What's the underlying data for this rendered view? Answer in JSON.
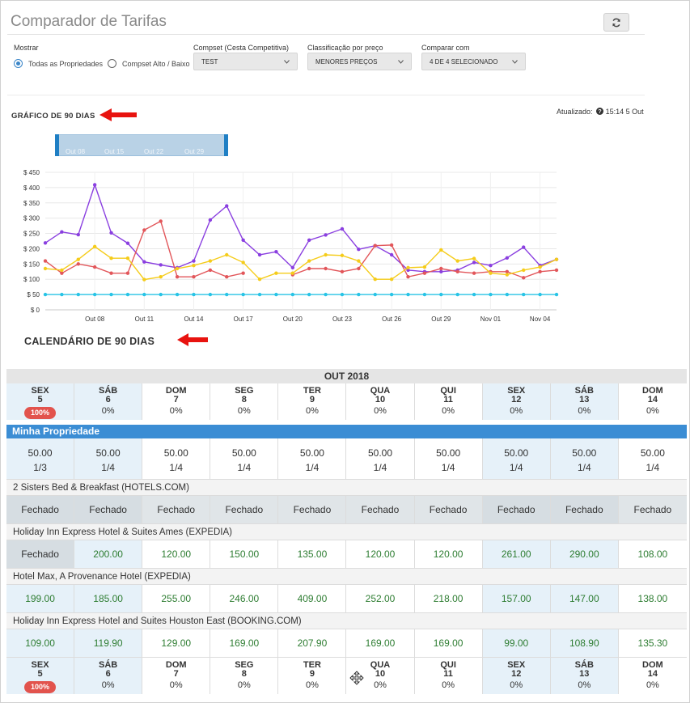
{
  "title": "Comparador de Tarifas",
  "filters": {
    "mostrar_label": "Mostrar",
    "radio_all": "Todas as Propriedades",
    "radio_compset": "Compset Alto / Baixo",
    "compset_label": "Compset (Cesta Competitiva)",
    "compset_value": "TEST",
    "class_label": "Classificação por preço",
    "class_value": "MENORES PREÇOS",
    "compare_label": "Comparar com",
    "compare_value": "4 DE 4 SELECIONADO"
  },
  "graph": {
    "title": "GRÁFICO DE 90 DIAS",
    "updated_label": "Atualizado:",
    "updated_value": "15:14 5 Out",
    "range_labels": [
      "Out 08",
      "Out 15",
      "Out 22",
      "Out 29"
    ]
  },
  "chart_data": {
    "type": "line",
    "y_ticks": [
      "$ 0",
      "$ 50",
      "$ 100",
      "$ 150",
      "$ 200",
      "$ 250",
      "$ 300",
      "$ 350",
      "$ 400",
      "$ 450"
    ],
    "ylim": [
      0,
      450
    ],
    "x_tick_labels": [
      "Out 08",
      "Out 11",
      "Out 14",
      "Out 17",
      "Out 20",
      "Out 23",
      "Out 26",
      "Out 29",
      "Nov 01",
      "Nov 04"
    ],
    "x_tick_days": [
      3,
      6,
      9,
      12,
      15,
      18,
      21,
      24,
      27,
      30
    ],
    "x_range": [
      0,
      31
    ],
    "grid": true,
    "series": [
      {
        "color": "#8a3fe0",
        "values": [
          219,
          255,
          246,
          409,
          252,
          218,
          157,
          147,
          138,
          160,
          294,
          340,
          228,
          180,
          190,
          138,
          228,
          245,
          265,
          198,
          210,
          180,
          130,
          125,
          125,
          130,
          155,
          145,
          170,
          205,
          145,
          165
        ]
      },
      {
        "color": "#e2565a",
        "values": [
          160,
          120,
          150,
          140,
          120,
          120,
          261,
          290,
          108,
          108,
          130,
          108,
          120,
          null,
          null,
          115,
          135,
          135,
          125,
          135,
          210,
          212,
          108,
          120,
          135,
          125,
          120,
          125,
          125,
          105,
          125,
          130
        ]
      },
      {
        "color": "#f5cc1a",
        "values": [
          135,
          130,
          165,
          207,
          169,
          169,
          99,
          108,
          135,
          145,
          160,
          180,
          155,
          100,
          120,
          120,
          160,
          180,
          178,
          160,
          100,
          100,
          138,
          140,
          196,
          160,
          168,
          120,
          115,
          130,
          140,
          165
        ]
      },
      {
        "color": "#28c4e6",
        "values": [
          50,
          50,
          50,
          50,
          50,
          50,
          50,
          50,
          50,
          50,
          50,
          50,
          50,
          50,
          50,
          50,
          50,
          50,
          50,
          50,
          50,
          50,
          50,
          50,
          50,
          50,
          50,
          50,
          50,
          50,
          50,
          50
        ]
      }
    ]
  },
  "calendar": {
    "title": "CALENDÁRIO DE 90 DIAS",
    "month": "OUT 2018",
    "days": [
      {
        "dow": "SEX",
        "day": "5",
        "pct": "100%",
        "badge": true,
        "hl": true
      },
      {
        "dow": "SÁB",
        "day": "6",
        "pct": "0%",
        "badge": false,
        "hl": true
      },
      {
        "dow": "DOM",
        "day": "7",
        "pct": "0%",
        "badge": false,
        "hl": false
      },
      {
        "dow": "SEG",
        "day": "8",
        "pct": "0%",
        "badge": false,
        "hl": false
      },
      {
        "dow": "TER",
        "day": "9",
        "pct": "0%",
        "badge": false,
        "hl": false
      },
      {
        "dow": "QUA",
        "day": "10",
        "pct": "0%",
        "badge": false,
        "hl": false
      },
      {
        "dow": "QUI",
        "day": "11",
        "pct": "0%",
        "badge": false,
        "hl": false
      },
      {
        "dow": "SEX",
        "day": "12",
        "pct": "0%",
        "badge": false,
        "hl": true
      },
      {
        "dow": "SÁB",
        "day": "13",
        "pct": "0%",
        "badge": false,
        "hl": true
      },
      {
        "dow": "DOM",
        "day": "14",
        "pct": "0%",
        "badge": false,
        "hl": false
      }
    ],
    "my_property": {
      "label": "Minha Propriedade",
      "cells": [
        {
          "rate": "50.00",
          "ratio": "1/3"
        },
        {
          "rate": "50.00",
          "ratio": "1/4"
        },
        {
          "rate": "50.00",
          "ratio": "1/4"
        },
        {
          "rate": "50.00",
          "ratio": "1/4"
        },
        {
          "rate": "50.00",
          "ratio": "1/4"
        },
        {
          "rate": "50.00",
          "ratio": "1/4"
        },
        {
          "rate": "50.00",
          "ratio": "1/4"
        },
        {
          "rate": "50.00",
          "ratio": "1/4"
        },
        {
          "rate": "50.00",
          "ratio": "1/4"
        },
        {
          "rate": "50.00",
          "ratio": "1/4"
        }
      ]
    },
    "hotels": [
      {
        "name": "2 Sisters Bed & Breakfast (HOTELS.COM)",
        "rates": [
          "Fechado",
          "Fechado",
          "Fechado",
          "Fechado",
          "Fechado",
          "Fechado",
          "Fechado",
          "Fechado",
          "Fechado",
          "Fechado"
        ]
      },
      {
        "name": "Holiday Inn Express Hotel & Suites Ames (EXPEDIA)",
        "rates": [
          "Fechado",
          "200.00",
          "120.00",
          "150.00",
          "135.00",
          "120.00",
          "120.00",
          "261.00",
          "290.00",
          "108.00"
        ]
      },
      {
        "name": "Hotel Max, A Provenance Hotel (EXPEDIA)",
        "rates": [
          "199.00",
          "185.00",
          "255.00",
          "246.00",
          "409.00",
          "252.00",
          "218.00",
          "157.00",
          "147.00",
          "138.00"
        ]
      },
      {
        "name": "Holiday Inn Express Hotel and Suites Houston East (BOOKING.COM)",
        "rates": [
          "109.00",
          "119.90",
          "129.00",
          "169.00",
          "207.90",
          "169.00",
          "169.00",
          "99.00",
          "108.90",
          "135.30"
        ]
      }
    ],
    "closed_text": "Fechado"
  },
  "icons": {
    "refresh": "refresh-icon",
    "info": "question-circle-icon",
    "move": "move-cursor-icon",
    "arrow": "red-arrow-icon"
  }
}
